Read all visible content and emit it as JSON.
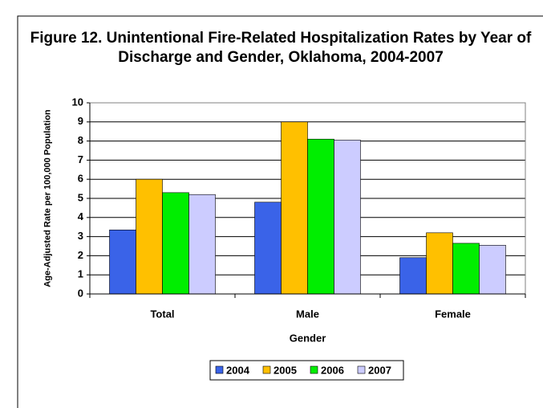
{
  "chart_data": {
    "type": "bar",
    "title": "Figure 12. Unintentional Fire-Related Hospitalization Rates by Year of Discharge and Gender, Oklahoma, 2004-2007",
    "x_label": "Gender",
    "y_label": "Age-Adjusted Rate per 100,000 Population",
    "categories": [
      "Total",
      "Male",
      "Female"
    ],
    "series": [
      {
        "name": "2004",
        "color": "#3a63e8",
        "values": [
          3.35,
          4.8,
          1.9
        ]
      },
      {
        "name": "2005",
        "color": "#ffc000",
        "values": [
          6.0,
          9.0,
          3.2
        ]
      },
      {
        "name": "2006",
        "color": "#00ee00",
        "values": [
          5.3,
          8.1,
          2.65
        ]
      },
      {
        "name": "2007",
        "color": "#ccccff",
        "values": [
          5.2,
          8.05,
          2.55
        ]
      }
    ],
    "ylim": [
      0,
      10
    ],
    "yticks": [
      0,
      1,
      2,
      3,
      4,
      5,
      6,
      7,
      8,
      9,
      10
    ],
    "grid": true,
    "legend": "bottom"
  }
}
